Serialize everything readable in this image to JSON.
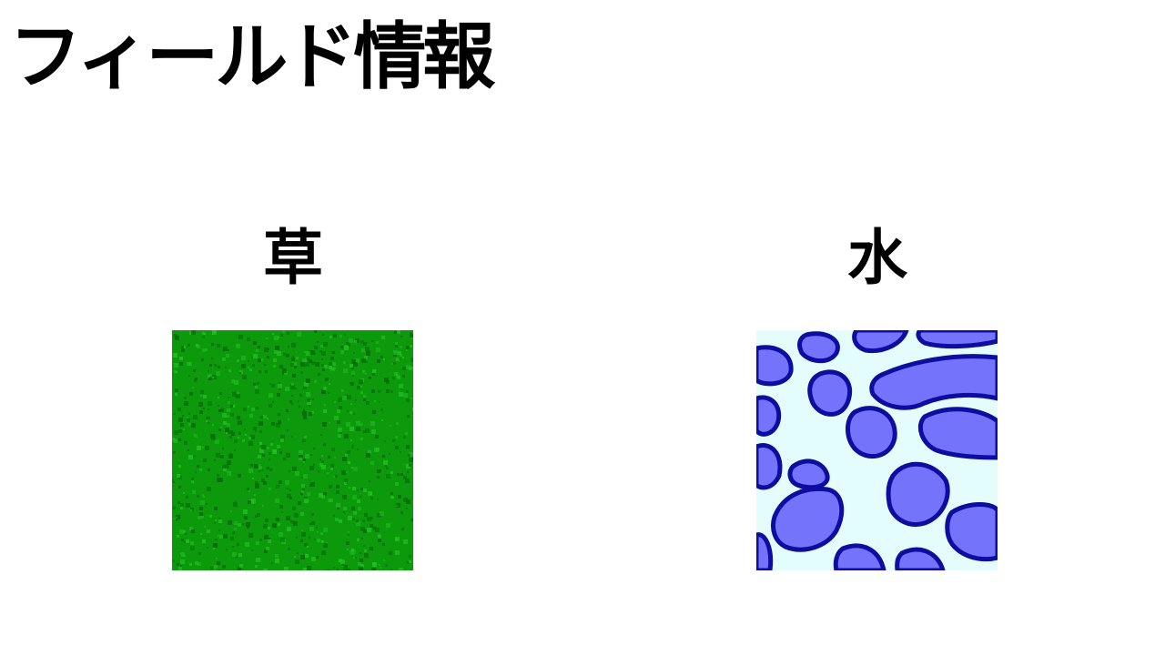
{
  "title": "フィールド情報",
  "tiles": [
    {
      "label": "草",
      "name": "grass",
      "colors": {
        "base": "#0c9a0c",
        "dark": "#066806",
        "light": "#22c022"
      }
    },
    {
      "label": "水",
      "name": "water",
      "colors": {
        "foam": "#e3fcfc",
        "pool": "#7373fb",
        "edge": "#0d0d9f"
      }
    }
  ]
}
